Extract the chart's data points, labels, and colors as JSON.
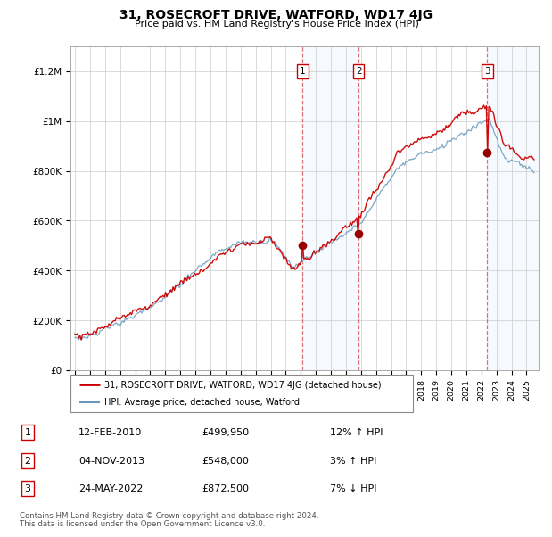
{
  "title": "31, ROSECROFT DRIVE, WATFORD, WD17 4JG",
  "subtitle": "Price paid vs. HM Land Registry's House Price Index (HPI)",
  "legend_line1": "31, ROSECROFT DRIVE, WATFORD, WD17 4JG (detached house)",
  "legend_line2": "HPI: Average price, detached house, Watford",
  "transactions": [
    {
      "num": 1,
      "date": "12-FEB-2010",
      "price": "£499,950",
      "hpi_str": "12% ↑ HPI",
      "year": 2010.12,
      "value": 499950
    },
    {
      "num": 2,
      "date": "04-NOV-2013",
      "price": "£548,000",
      "hpi_str": "3% ↑ HPI",
      "year": 2013.84,
      "value": 548000
    },
    {
      "num": 3,
      "date": "24-MAY-2022",
      "price": "£872,500",
      "hpi_str": "7% ↓ HPI",
      "year": 2022.39,
      "value": 872500
    }
  ],
  "footer_line1": "Contains HM Land Registry data © Crown copyright and database right 2024.",
  "footer_line2": "This data is licensed under the Open Government Licence v3.0.",
  "red_color": "#cc0000",
  "blue_color": "#6699bb",
  "shading_color": "#ddeeff",
  "ylim": [
    0,
    1300000
  ],
  "yticks": [
    0,
    200000,
    400000,
    600000,
    800000,
    1000000,
    1200000
  ],
  "ytick_labels": [
    "£0",
    "£200K",
    "£400K",
    "£600K",
    "£800K",
    "£1M",
    "£1.2M"
  ]
}
